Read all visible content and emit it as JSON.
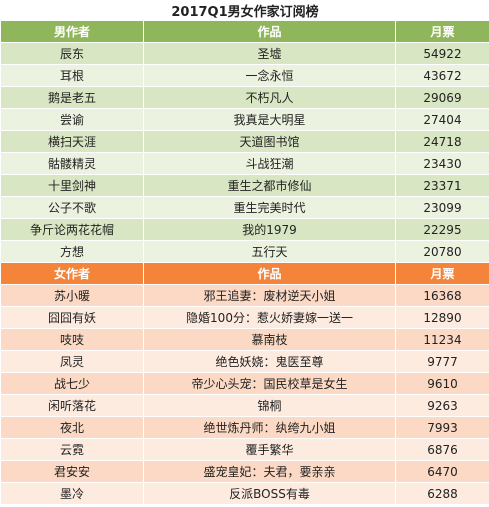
{
  "title": "2017Q1男女作家订阅榜",
  "male": {
    "header": [
      "男作者",
      "作品",
      "月票"
    ],
    "rows": [
      [
        "辰东",
        "圣墟",
        54922
      ],
      [
        "耳根",
        "一念永恒",
        43672
      ],
      [
        "鹅是老五",
        "不朽凡人",
        29069
      ],
      [
        "尝谕",
        "我真是大明星",
        27404
      ],
      [
        "横扫天涯",
        "天道图书馆",
        24718
      ],
      [
        "骷髅精灵",
        "斗战狂潮",
        23430
      ],
      [
        "十里剑神",
        "重生之都市修仙",
        23371
      ],
      [
        "公子不歌",
        "重生完美时代",
        23099
      ],
      [
        "争斤论两花花帽",
        "我的1979",
        22295
      ],
      [
        "方想",
        "五行天",
        20780
      ]
    ]
  },
  "female": {
    "header": [
      "女作者",
      "作品",
      "月票"
    ],
    "rows": [
      [
        "苏小暖",
        "邪王追妻：废材逆天小姐",
        16368
      ],
      [
        "囧囧有妖",
        "隐婚100分：惹火娇妻嫁一送一",
        12890
      ],
      [
        "吱吱",
        "慕南枝",
        11234
      ],
      [
        "凤灵",
        "绝色妖娆：鬼医至尊",
        9777
      ],
      [
        "战七少",
        "帝少心头宠：国民校草是女生",
        9610
      ],
      [
        "闲听落花",
        "锦桐",
        9263
      ],
      [
        "夜北",
        "绝世炼丹师：纨绔九小姐",
        7993
      ],
      [
        "云霓",
        "覆手繁华",
        6876
      ],
      [
        "君安安",
        "盛宠皇妃：夫君，要亲亲",
        6470
      ],
      [
        "墨冷",
        "反派BOSS有毒",
        6288
      ]
    ]
  }
}
